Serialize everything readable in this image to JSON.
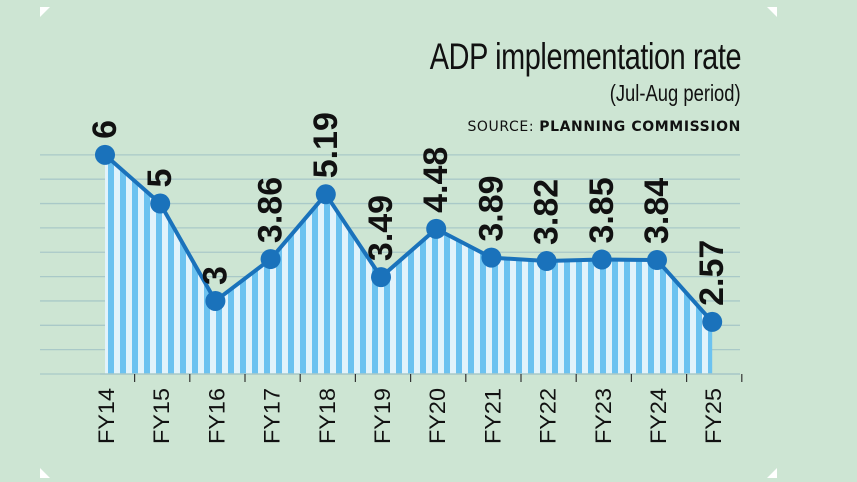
{
  "chart_data": {
    "type": "area",
    "title": "ADP implementation rate",
    "subtitle": "(Jul-Aug period)",
    "source_label": "SOURCE:",
    "source_name": "PLANNING COMMISSION",
    "categories": [
      "FY14",
      "FY15",
      "FY16",
      "FY17",
      "FY18",
      "FY19",
      "FY20",
      "FY21",
      "FY22",
      "FY23",
      "FY24",
      "FY25"
    ],
    "values": [
      6,
      5,
      3,
      3.86,
      5.19,
      3.49,
      4.48,
      3.89,
      3.82,
      3.85,
      3.84,
      2.57
    ],
    "data_labels": [
      "6",
      "5",
      "3",
      "3.86",
      "5.19",
      "3.49",
      "4.48",
      "3.89",
      "3.82",
      "3.85",
      "3.84",
      "2.57"
    ],
    "ylim": [
      1.5,
      6.5
    ],
    "grid": true,
    "colors": {
      "background": "#cde5d3",
      "line": "#1a72bb",
      "fill_stripe": "#6cc2f0",
      "fill_light": "#e2f3fb",
      "grid": "#a9c9c8"
    }
  }
}
